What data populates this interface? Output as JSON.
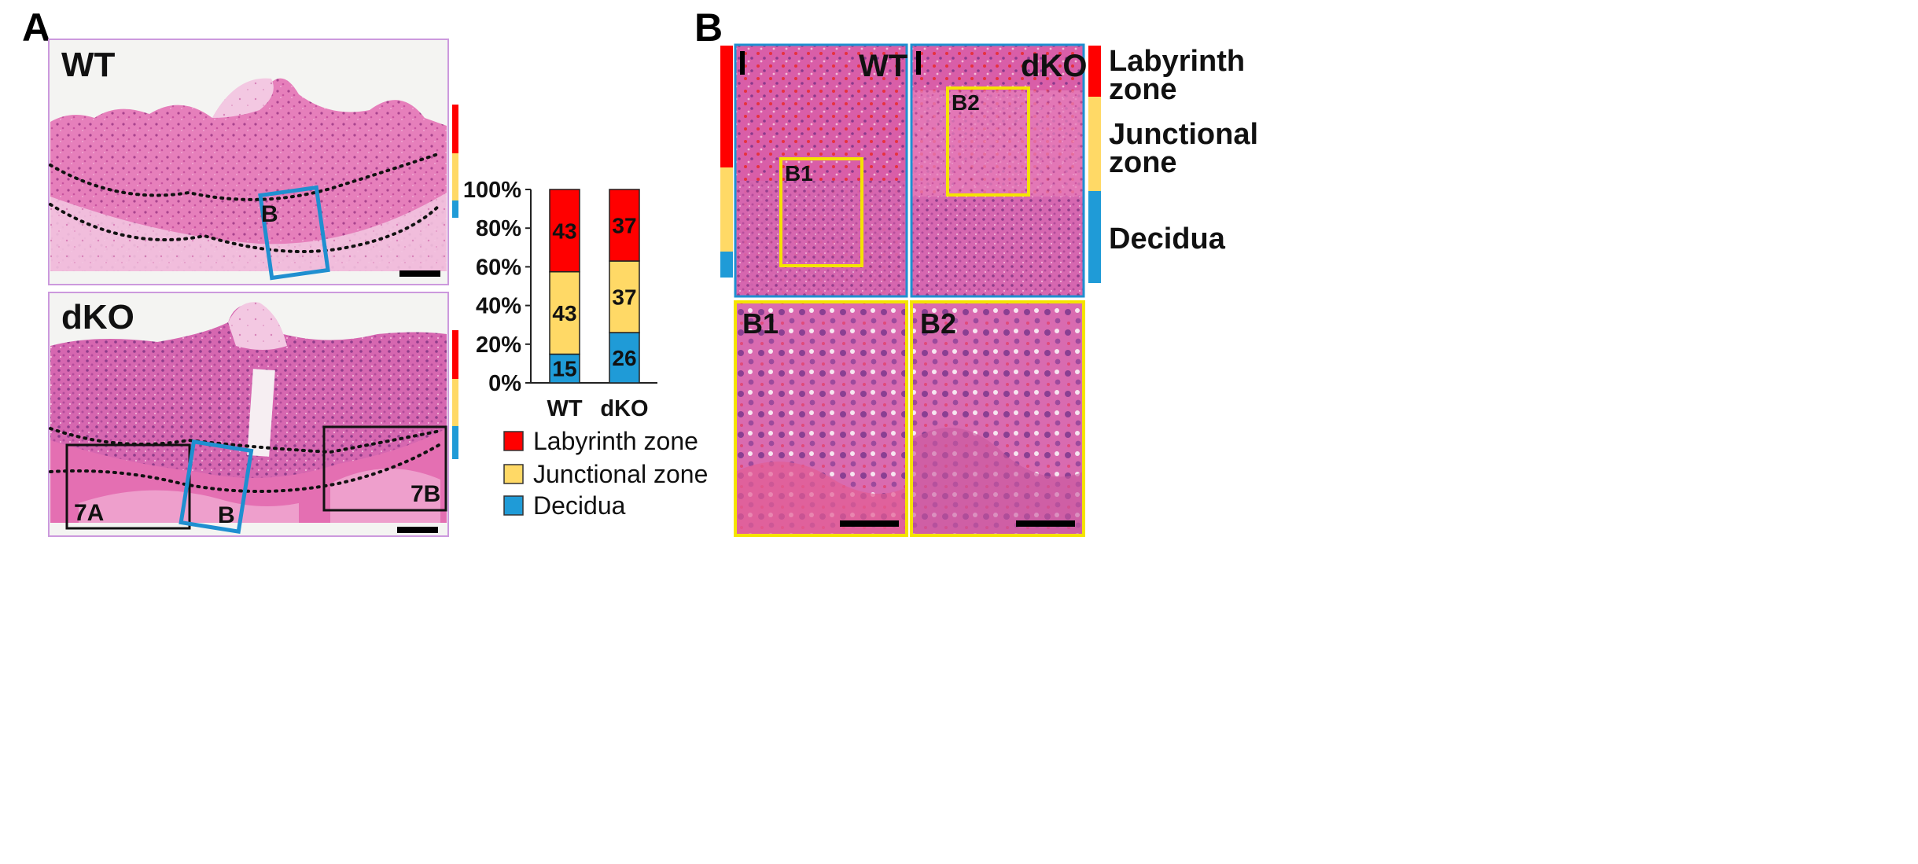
{
  "panel_a": {
    "letter": "A",
    "wt_label": "WT",
    "dko_label": "dKO",
    "box_b_label": "B",
    "box_7a_label": "7A",
    "box_7b_label": "7B"
  },
  "panel_b": {
    "letter": "B",
    "wt_label": "WT",
    "dko_label": "dKO",
    "inset_b1_label": "B1",
    "inset_b2_label": "B2",
    "zoom_b1_label": "B1",
    "zoom_b2_label": "B2",
    "zone_labels": {
      "labyrinth_line1": "Labyrinth",
      "labyrinth_line2": "zone",
      "junctional_line1": "Junctional",
      "junctional_line2": "zone",
      "decidua": "Decidua"
    }
  },
  "colors": {
    "labyrinth": "#ff0000",
    "junctional": "#ffd966",
    "decidua": "#1f9bd7",
    "tissue_pink": "#e879b7",
    "tissue_dark": "#c0529a",
    "box_blue": "#1f8fd0",
    "inset_yellow": "#f5e400"
  },
  "chart_data": {
    "type": "bar",
    "stacked": true,
    "categories": [
      "WT",
      "dKO"
    ],
    "series": [
      {
        "name": "Decidua",
        "values": [
          15,
          26
        ],
        "labels": [
          "15",
          "26"
        ]
      },
      {
        "name": "Junctional zone",
        "values": [
          43,
          37
        ],
        "labels": [
          "43",
          "37"
        ]
      },
      {
        "name": "Labyrinth zone",
        "values": [
          43,
          37
        ],
        "labels": [
          "43",
          "37"
        ]
      }
    ],
    "yticks": [
      "0%",
      "20%",
      "40%",
      "60%",
      "80%",
      "100%"
    ],
    "ylim": [
      0,
      100
    ],
    "legend": [
      "Labyrinth zone",
      "Junctional zone",
      "Decidua"
    ],
    "legend_position": "bottom"
  }
}
